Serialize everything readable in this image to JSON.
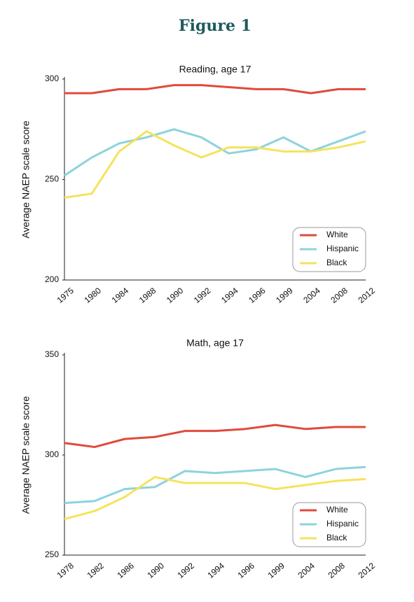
{
  "title": "Figure 1",
  "chart_data": [
    {
      "type": "line",
      "title": "Reading, age 17",
      "y_label": "Average NAEP scale score",
      "categories": [
        "1975",
        "1980",
        "1984",
        "1988",
        "1990",
        "1992",
        "1994",
        "1996",
        "1999",
        "2004",
        "2008",
        "2012"
      ],
      "series": [
        {
          "name": "White",
          "color": "#e04a3c",
          "values": [
            293,
            293,
            295,
            295,
            297,
            297,
            296,
            295,
            295,
            293,
            295,
            295
          ]
        },
        {
          "name": "Hispanic",
          "color": "#8dd3dc",
          "values": [
            252,
            261,
            268,
            271,
            275,
            271,
            263,
            265,
            271,
            264,
            269,
            274
          ]
        },
        {
          "name": "Black",
          "color": "#f5e35c",
          "values": [
            241,
            243,
            264,
            274,
            267,
            261,
            266,
            266,
            264,
            264,
            266,
            269
          ]
        }
      ],
      "ylim": [
        200,
        300
      ],
      "yticks": [
        200,
        250,
        300
      ],
      "legend": "lower right"
    },
    {
      "type": "line",
      "title": "Math, age 17",
      "y_label": "Average NAEP scale score",
      "categories": [
        "1978",
        "1982",
        "1986",
        "1990",
        "1992",
        "1994",
        "1996",
        "1999",
        "2004",
        "2008",
        "2012"
      ],
      "series": [
        {
          "name": "White",
          "color": "#e04a3c",
          "values": [
            306,
            304,
            308,
            309,
            312,
            312,
            313,
            315,
            313,
            314,
            314
          ]
        },
        {
          "name": "Hispanic",
          "color": "#8dd3dc",
          "values": [
            276,
            277,
            283,
            284,
            292,
            291,
            292,
            293,
            289,
            293,
            294
          ]
        },
        {
          "name": "Black",
          "color": "#f5e35c",
          "values": [
            268,
            272,
            279,
            289,
            286,
            286,
            286,
            283,
            285,
            287,
            288
          ]
        }
      ],
      "ylim": [
        250,
        350
      ],
      "yticks": [
        250,
        300,
        350
      ],
      "legend": "lower right"
    }
  ]
}
